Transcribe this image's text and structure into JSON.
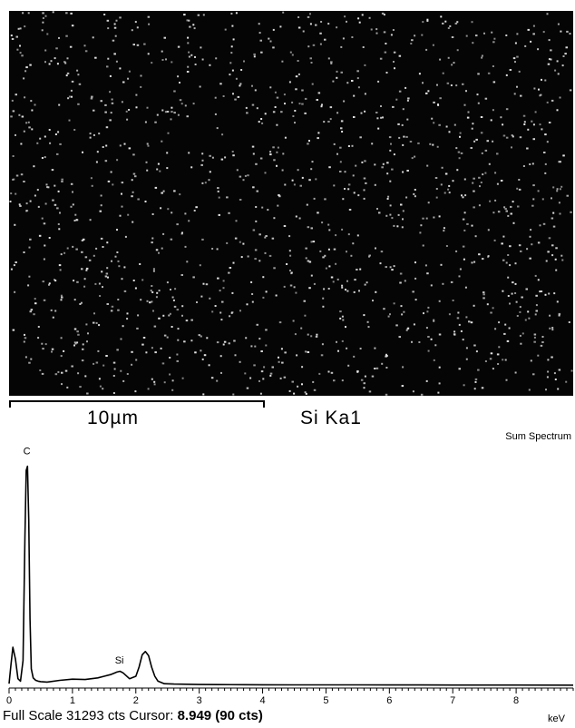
{
  "map": {
    "scale_label": "10µm",
    "element_label": "Si Ka1",
    "background": "#050505",
    "dot_color": "#e8e8e8"
  },
  "chart_data": {
    "type": "line",
    "title": "Sum Spectrum",
    "xlabel": "keV",
    "xlim": [
      0,
      8.9
    ],
    "ticks": [
      "0",
      "1",
      "2",
      "3",
      "4",
      "5",
      "6",
      "7",
      "8"
    ],
    "ylim": [
      0,
      31293
    ],
    "peak_labels": [
      {
        "text": "C",
        "x": 0.28,
        "y": 27500
      },
      {
        "text": "Si",
        "x": 1.74,
        "y": 2200
      }
    ],
    "x": [
      0,
      0.03,
      0.06,
      0.1,
      0.14,
      0.18,
      0.22,
      0.25,
      0.27,
      0.29,
      0.31,
      0.33,
      0.35,
      0.38,
      0.42,
      0.46,
      0.5,
      0.6,
      0.8,
      1.0,
      1.2,
      1.4,
      1.5,
      1.6,
      1.7,
      1.75,
      1.8,
      1.9,
      2.0,
      2.05,
      2.1,
      2.15,
      2.2,
      2.25,
      2.3,
      2.35,
      2.45,
      2.6,
      2.8,
      3.0,
      3.3,
      3.7,
      4.0,
      4.5,
      5.0,
      5.5,
      6.0,
      6.5,
      7.0,
      8.0,
      8.9
    ],
    "y": [
      200,
      2500,
      4600,
      3200,
      800,
      500,
      3000,
      18000,
      26000,
      26500,
      20000,
      8000,
      2000,
      900,
      600,
      500,
      450,
      400,
      600,
      750,
      700,
      900,
      1100,
      1300,
      1600,
      1700,
      1500,
      800,
      1100,
      2200,
      3700,
      4100,
      3600,
      2200,
      1100,
      500,
      200,
      150,
      130,
      100,
      90,
      80,
      70,
      60,
      55,
      50,
      45,
      40,
      35,
      30,
      25
    ]
  },
  "status": {
    "prefix": "Full Scale 31293 cts Cursor: ",
    "cursor_value": "8.949",
    "cursor_counts": " (90 cts)",
    "unit": "keV"
  }
}
